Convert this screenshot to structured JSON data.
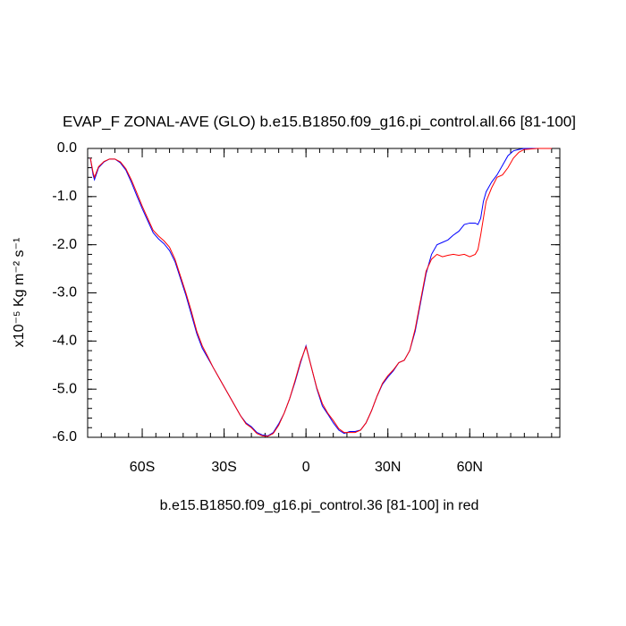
{
  "chart_data": {
    "type": "line",
    "title": "EVAP_F ZONAL-AVE (GLO) b.e15.B1850.f09_g16.pi_control.all.66 [81-100]",
    "y_label": "x10⁻⁵ Kg m⁻² s⁻¹",
    "annotation": "b.e15.B1850.f09_g16.pi_control.36 [81-100] in red",
    "xlim": [
      -80,
      93
    ],
    "ylim": [
      -6,
      0
    ],
    "xticks": [
      {
        "value": -60,
        "label": "60S"
      },
      {
        "value": -30,
        "label": "30S"
      },
      0,
      {
        "value": 30,
        "label": "30N"
      },
      {
        "value": 60,
        "label": "60N"
      }
    ],
    "yticks": [
      {
        "value": 0,
        "label": "0.0"
      },
      {
        "value": -1,
        "label": "-1.0"
      },
      {
        "value": -2,
        "label": "-2.0"
      },
      {
        "value": -3,
        "label": "-3.0"
      },
      {
        "value": -4,
        "label": "-4.0"
      },
      {
        "value": -5,
        "label": "-5.0"
      },
      {
        "value": -6,
        "label": "-6.0"
      }
    ],
    "x": [
      -79,
      -78,
      -77.5,
      -76,
      -74,
      -72,
      -70,
      -68,
      -66,
      -64,
      -62,
      -60,
      -58,
      -56,
      -54,
      -52,
      -50,
      -48,
      -46,
      -44,
      -42,
      -40,
      -38,
      -36,
      -34,
      -32,
      -30,
      -28,
      -26,
      -24,
      -22,
      -20,
      -18,
      -16,
      -14,
      -12,
      -10,
      -8,
      -6,
      -4,
      -2,
      0,
      2,
      4,
      6,
      8,
      10,
      12,
      14,
      16,
      18,
      20,
      22,
      24,
      26,
      28,
      30,
      32,
      34,
      36,
      38,
      40,
      42,
      44,
      46,
      48,
      50,
      52,
      54,
      56,
      58,
      60,
      62,
      63,
      64,
      65,
      66,
      68,
      70,
      72,
      74,
      76,
      78,
      80,
      85,
      90
    ],
    "series": [
      {
        "color": "#0000ff",
        "values": [
          -0.2,
          -0.55,
          -0.65,
          -0.4,
          -0.28,
          -0.22,
          -0.22,
          -0.3,
          -0.45,
          -0.7,
          -0.98,
          -1.25,
          -1.5,
          -1.75,
          -1.88,
          -1.98,
          -2.12,
          -2.35,
          -2.7,
          -3.05,
          -3.45,
          -3.85,
          -4.15,
          -4.35,
          -4.55,
          -4.75,
          -4.95,
          -5.15,
          -5.35,
          -5.55,
          -5.7,
          -5.78,
          -5.9,
          -5.95,
          -5.97,
          -5.9,
          -5.72,
          -5.5,
          -5.2,
          -4.85,
          -4.45,
          -4.1,
          -4.55,
          -5.0,
          -5.35,
          -5.52,
          -5.7,
          -5.85,
          -5.92,
          -5.88,
          -5.88,
          -5.85,
          -5.7,
          -5.45,
          -5.15,
          -4.9,
          -4.75,
          -4.62,
          -4.45,
          -4.4,
          -4.2,
          -3.8,
          -3.2,
          -2.6,
          -2.2,
          -2.0,
          -1.95,
          -1.9,
          -1.8,
          -1.72,
          -1.58,
          -1.55,
          -1.55,
          -1.58,
          -1.45,
          -1.1,
          -0.9,
          -0.7,
          -0.55,
          -0.35,
          -0.15,
          -0.05,
          -0.02,
          0,
          0,
          0
        ]
      },
      {
        "color": "#ff0000",
        "values": [
          -0.2,
          -0.5,
          -0.6,
          -0.38,
          -0.27,
          -0.22,
          -0.22,
          -0.28,
          -0.42,
          -0.65,
          -0.92,
          -1.2,
          -1.45,
          -1.7,
          -1.82,
          -1.92,
          -2.05,
          -2.3,
          -2.65,
          -3.0,
          -3.38,
          -3.8,
          -4.1,
          -4.32,
          -4.55,
          -4.75,
          -4.95,
          -5.15,
          -5.35,
          -5.55,
          -5.72,
          -5.8,
          -5.92,
          -5.97,
          -5.98,
          -5.92,
          -5.75,
          -5.5,
          -5.2,
          -4.82,
          -4.42,
          -4.12,
          -4.55,
          -4.98,
          -5.3,
          -5.5,
          -5.65,
          -5.82,
          -5.9,
          -5.9,
          -5.9,
          -5.85,
          -5.7,
          -5.45,
          -5.15,
          -4.88,
          -4.72,
          -4.6,
          -4.45,
          -4.4,
          -4.2,
          -3.75,
          -3.15,
          -2.55,
          -2.3,
          -2.2,
          -2.25,
          -2.22,
          -2.2,
          -2.22,
          -2.2,
          -2.25,
          -2.2,
          -2.1,
          -1.8,
          -1.45,
          -1.1,
          -0.82,
          -0.6,
          -0.55,
          -0.4,
          -0.2,
          -0.08,
          -0.02,
          0,
          0
        ]
      }
    ]
  }
}
